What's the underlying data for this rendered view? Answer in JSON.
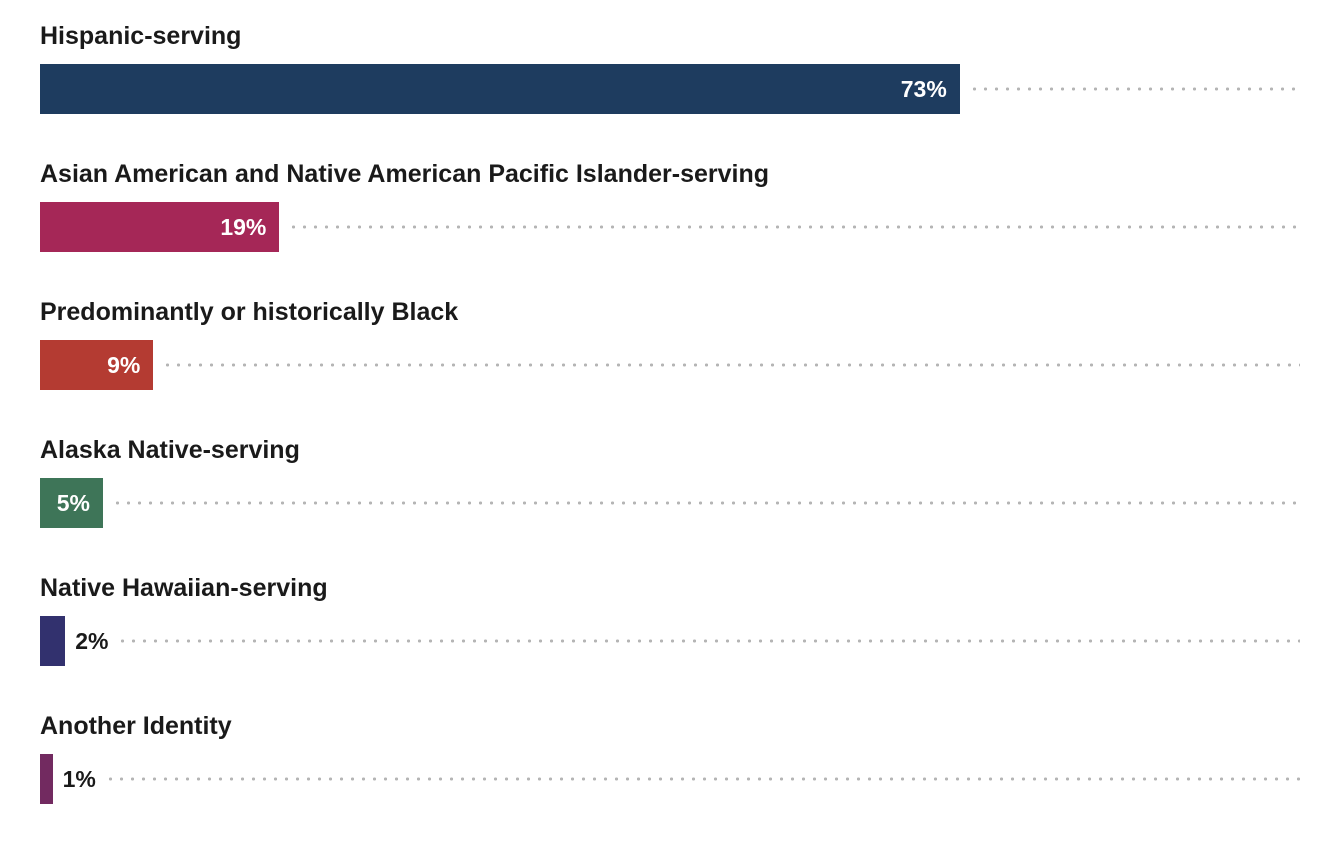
{
  "chart_data": {
    "type": "bar",
    "orientation": "horizontal",
    "title": "",
    "xlabel": "",
    "ylabel": "",
    "xlim": [
      0,
      100
    ],
    "grid": false,
    "legend": "none",
    "leader_dot_color": "#b5b5b5",
    "inside_label_min_value": 5,
    "categories": [
      "Hispanic-serving",
      "Asian American and Native American Pacific Islander-serving",
      "Predominantly or historically Black",
      "Alaska Native-serving",
      "Native Hawaiian-serving",
      "Another Identity"
    ],
    "values": [
      73,
      19,
      9,
      5,
      2,
      1
    ],
    "value_labels": [
      "73%",
      "19%",
      "9%",
      "5%",
      "2%",
      "1%"
    ],
    "bar_colors": [
      "#1e3c5f",
      "#a52757",
      "#b43b32",
      "#3e7558",
      "#32316e",
      "#722a60"
    ]
  }
}
